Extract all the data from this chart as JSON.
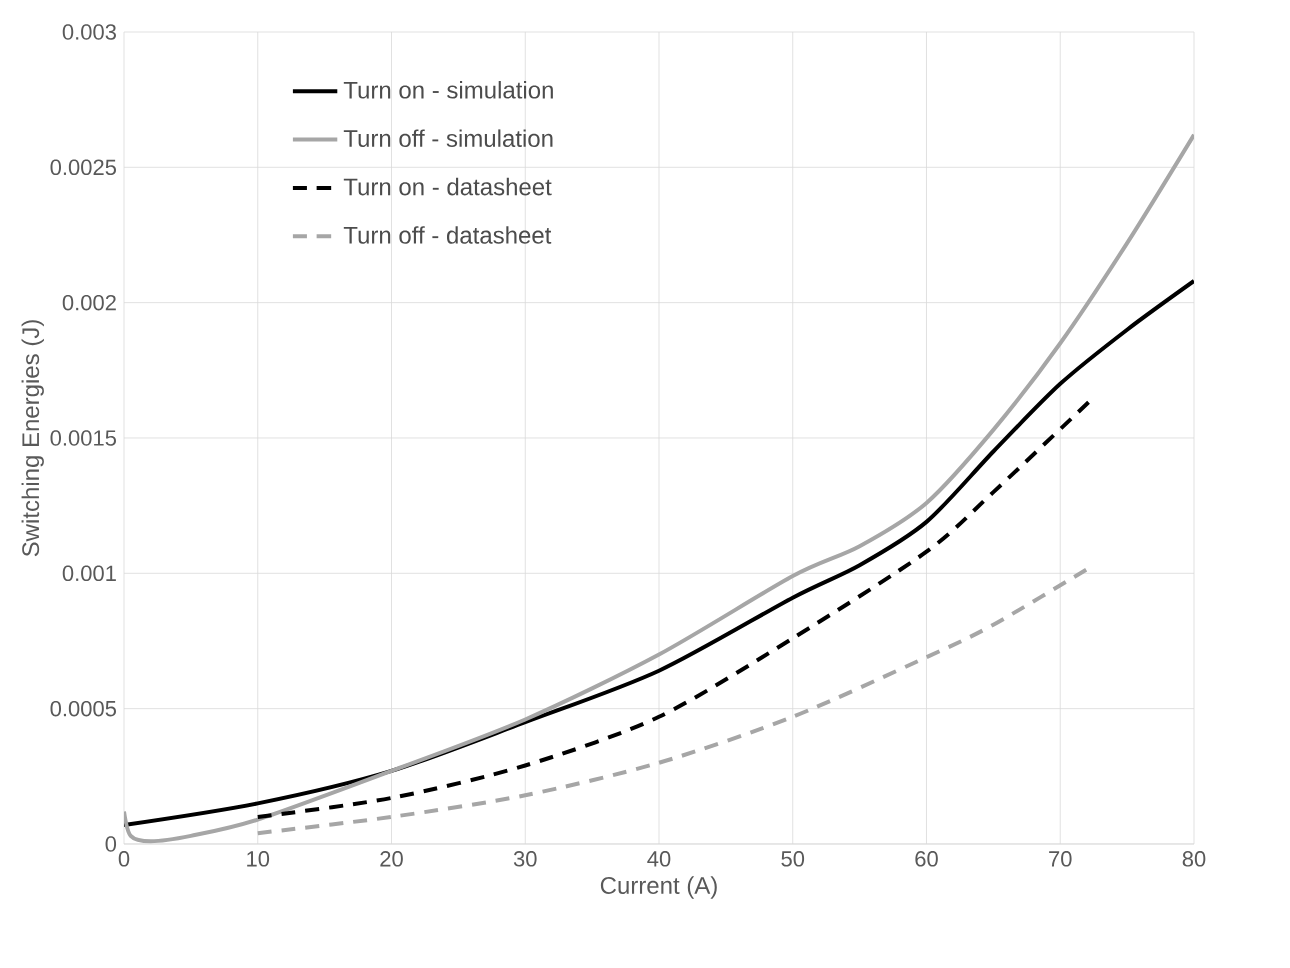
{
  "chart_data": {
    "type": "line",
    "xlabel": "Current (A)",
    "ylabel": "Switching Energies (J)",
    "xlim": [
      0,
      80
    ],
    "ylim": [
      0,
      0.003
    ],
    "xticks": [
      0,
      10,
      20,
      30,
      40,
      50,
      60,
      70,
      80
    ],
    "yticks": [
      0,
      0.0005,
      0.001,
      0.0015,
      0.002,
      0.0025,
      0.003
    ],
    "grid": true,
    "legend": "top left",
    "series": [
      {
        "name": "Turn on - simulation",
        "color": "#000000",
        "line_style": "solid",
        "x": [
          0,
          10,
          20,
          30,
          40,
          50,
          55,
          60,
          65,
          70,
          75,
          80
        ],
        "values": [
          7e-05,
          0.00015,
          0.00027,
          0.00045,
          0.00064,
          0.00091,
          0.00103,
          0.00119,
          0.00145,
          0.0017,
          0.0019,
          0.00208
        ]
      },
      {
        "name": "Turn off - simulation",
        "color": "#a6a6a6",
        "line_style": "solid",
        "x": [
          0,
          0.5,
          2,
          5,
          10,
          20,
          30,
          40,
          50,
          55,
          60,
          65,
          70,
          75,
          80
        ],
        "values": [
          0.00012,
          3e-05,
          1e-05,
          3e-05,
          9e-05,
          0.00027,
          0.00046,
          0.0007,
          0.00099,
          0.0011,
          0.00126,
          0.00153,
          0.00185,
          0.00222,
          0.00262
        ]
      },
      {
        "name": "Turn on - datasheet",
        "color": "#000000",
        "line_style": "dashed",
        "x": [
          10,
          20,
          30,
          40,
          50,
          60,
          65,
          72.5
        ],
        "values": [
          0.0001,
          0.00017,
          0.00029,
          0.00047,
          0.00076,
          0.00108,
          0.0013,
          0.00165
        ]
      },
      {
        "name": "Turn off - datasheet",
        "color": "#a6a6a6",
        "line_style": "dashed",
        "x": [
          10,
          20,
          30,
          40,
          50,
          60,
          65,
          72.5
        ],
        "values": [
          4e-05,
          0.0001,
          0.00018,
          0.0003,
          0.00047,
          0.00069,
          0.00081,
          0.00103
        ]
      }
    ]
  }
}
